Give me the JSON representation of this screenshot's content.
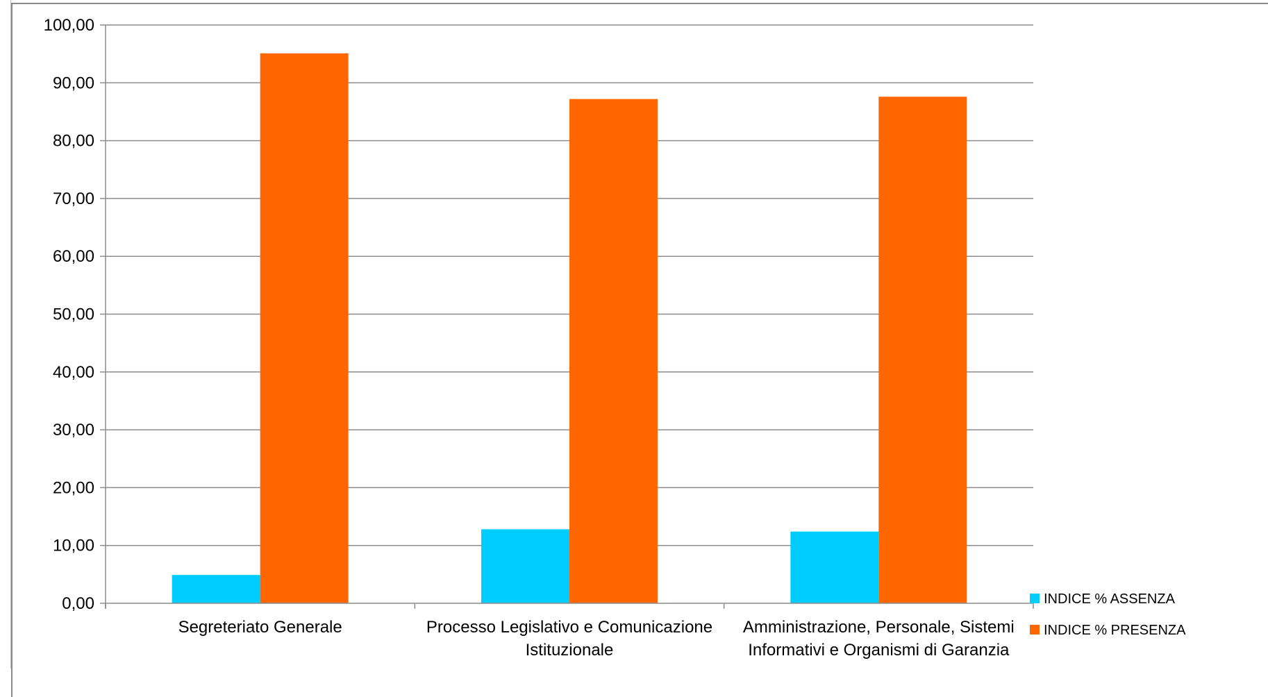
{
  "chart_data": {
    "type": "bar",
    "title": "",
    "xlabel": "",
    "ylabel": "",
    "ylim": [
      0,
      100
    ],
    "y_ticks": [
      "0,00",
      "10,00",
      "20,00",
      "30,00",
      "40,00",
      "50,00",
      "60,00",
      "70,00",
      "80,00",
      "90,00",
      "100,00"
    ],
    "y_tick_values": [
      0,
      10,
      20,
      30,
      40,
      50,
      60,
      70,
      80,
      90,
      100
    ],
    "grid": "horizontal",
    "legend_position": "right-bottom",
    "categories": [
      [
        "Segreteriato Generale"
      ],
      [
        "Processo Legislativo e Comunicazione",
        "Istituzionale"
      ],
      [
        "Amministrazione, Personale, Sistemi",
        "Informativi e Organismi di Garanzia"
      ]
    ],
    "series": [
      {
        "name": "INDICE % ASSENZA",
        "color": "#00CCFF",
        "values": [
          4.9,
          12.8,
          12.4
        ]
      },
      {
        "name": "INDICE % PRESENZA",
        "color": "#FF6600",
        "values": [
          95.1,
          87.2,
          87.6
        ]
      }
    ]
  }
}
